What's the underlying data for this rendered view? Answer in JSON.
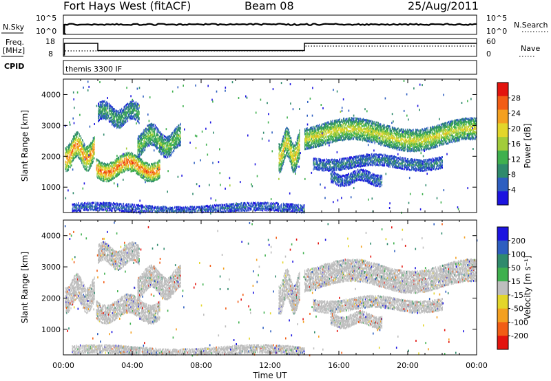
{
  "header": {
    "site": "Fort Hays West (fitACF)",
    "beam": "Beam 08",
    "date": "25/Aug/2011"
  },
  "aux_panels": {
    "nsky_label": "N.Sky",
    "nsky_ticks": [
      "10^5",
      "10^0"
    ],
    "nsearch_label": "N.Search",
    "nsearch_ticks": [
      "10^5",
      "10^0"
    ],
    "freq_label": "Freq.",
    "freq_unit": "[MHz]",
    "freq_ticks": [
      "18",
      "8"
    ],
    "nave_label": "Nave",
    "nave_ticks": [
      "60",
      "0"
    ],
    "cpid_label": "CPID",
    "cpid_value": "themis 3300 IF"
  },
  "chart_data": [
    {
      "type": "heatmap",
      "panel": "power",
      "ylabel": "Slant Range [km]",
      "xlabel": "",
      "x_ticks": [
        "00:00",
        "04:00",
        "08:00",
        "12:00",
        "16:00",
        "20:00",
        "00:00"
      ],
      "y_ticks": [
        "1000",
        "2000",
        "3000",
        "4000"
      ],
      "xlim_hours": [
        0,
        24
      ],
      "ylim_km": [
        180,
        4500
      ],
      "colorbar": {
        "label": "Power [dB]",
        "ticks": [
          "4",
          "8",
          "12",
          "16",
          "20",
          "24",
          "28"
        ],
        "range": [
          0,
          30
        ],
        "colors": [
          "#1c14e0",
          "#2d5ec0",
          "#2f8a6c",
          "#3fb04e",
          "#a2cc3a",
          "#e3d62a",
          "#f4a020",
          "#f25d15",
          "#e3140e"
        ]
      },
      "echo_regions": [
        {
          "t_start": 0.1,
          "t_end": 1.8,
          "r_center_km": 2150,
          "r_width_km": 380,
          "power_db": 24
        },
        {
          "t_start": 1.9,
          "t_end": 5.6,
          "r_center_km": 1650,
          "r_width_km": 300,
          "power_db": 25
        },
        {
          "t_start": 2.0,
          "t_end": 4.4,
          "r_center_km": 3350,
          "r_width_km": 260,
          "power_db": 11
        },
        {
          "t_start": 4.3,
          "t_end": 6.8,
          "r_center_km": 2500,
          "r_width_km": 350,
          "power_db": 14
        },
        {
          "t_start": 12.5,
          "t_end": 13.7,
          "r_center_km": 2200,
          "r_width_km": 450,
          "power_db": 20
        },
        {
          "t_start": 14.0,
          "t_end": 24.0,
          "r_center_km": 2700,
          "r_width_km": 320,
          "power_db": 18
        },
        {
          "t_start": 14.5,
          "t_end": 22.0,
          "r_center_km": 1800,
          "r_width_km": 150,
          "power_db": 8
        },
        {
          "t_start": 15.5,
          "t_end": 18.5,
          "r_center_km": 1300,
          "r_width_km": 160,
          "power_db": 7
        },
        {
          "t_start": 0.5,
          "t_end": 14.0,
          "r_center_km": 300,
          "r_width_km": 120,
          "power_db": 6
        }
      ]
    },
    {
      "type": "heatmap",
      "panel": "velocity",
      "ylabel": "Slant Range [km]",
      "xlabel": "Time UT",
      "x_ticks": [
        "00:00",
        "04:00",
        "08:00",
        "12:00",
        "16:00",
        "20:00",
        "00:00"
      ],
      "y_ticks": [
        "1000",
        "2000",
        "3000",
        "4000"
      ],
      "xlim_hours": [
        0,
        24
      ],
      "ylim_km": [
        180,
        4500
      ],
      "colorbar": {
        "label": "Velocity [m s⁻¹]",
        "ticks": [
          "200",
          "100",
          "50",
          "15",
          "-15",
          "-50",
          "-100",
          "-200"
        ],
        "range": [
          -250,
          250
        ],
        "colors": [
          "#e3140e",
          "#f25d15",
          "#f4a020",
          "#e3d62a",
          "#bebebe",
          "#3fb04e",
          "#2f8a6c",
          "#2d5ec0",
          "#1c14e0"
        ]
      },
      "dominant_velocity_ms": 0
    }
  ]
}
